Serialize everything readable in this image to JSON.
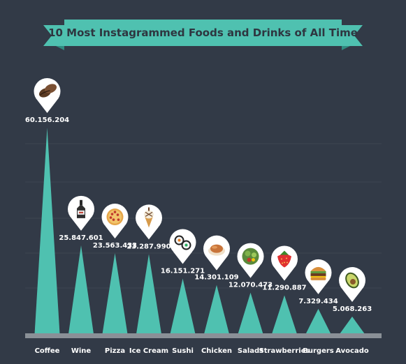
{
  "chart_data": {
    "type": "bar",
    "title": "10 Most Instagrammed Foods and Drinks of All Time",
    "categories": [
      "Coffee",
      "Wine",
      "Pizza",
      "Ice Cream",
      "Sushi",
      "Chicken",
      "Salads",
      "Strawberries",
      "Burgers",
      "Avocado"
    ],
    "values": [
      60156204,
      25847601,
      23563433,
      23287990,
      16151271,
      14301109,
      12070473,
      11290887,
      7329434,
      5068263
    ],
    "value_labels": [
      "60.156.204",
      "25.847.601",
      "23.563.433",
      "23.287.990",
      "16.151.271",
      "14.301.109",
      "12.070.473",
      "11.290.887",
      "7.329.434",
      "5.068.263"
    ],
    "icons": [
      "coffee-beans-icon",
      "wine-bottle-icon",
      "pizza-icon",
      "ice-cream-cone-icon",
      "sushi-roll-icon",
      "roast-chicken-icon",
      "salad-bowl-icon",
      "strawberry-icon",
      "burger-icon",
      "avocado-icon"
    ],
    "bar_shape": "triangle",
    "grid": true,
    "legend": "none",
    "colors": {
      "background": "#323a47",
      "bar": "#4fc1b0",
      "banner": "#4fc1b0",
      "banner_fold": "#2f8b80",
      "baseline": "#8a9097",
      "pin": "#ffffff",
      "grid": "#3d4552"
    }
  }
}
